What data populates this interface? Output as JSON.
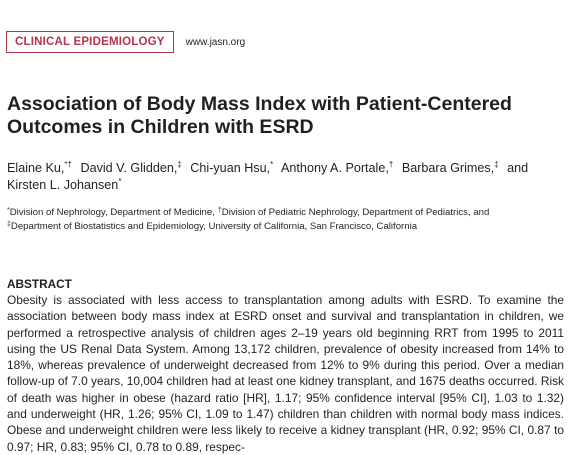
{
  "header": {
    "section": "CLINICAL EPIDEMIOLOGY",
    "url": "www.jasn.org"
  },
  "title_lines": [
    "Association of Body Mass Index with Patient-Centered",
    "Outcomes in Children with ESRD"
  ],
  "authors": [
    {
      "name": "Elaine Ku,",
      "marks": "*†"
    },
    {
      "name": "David V. Glidden,",
      "marks": "‡"
    },
    {
      "name": "Chi-yuan Hsu,",
      "marks": "*"
    },
    {
      "name": "Anthony A. Portale,",
      "marks": "†"
    },
    {
      "name": "Barbara Grimes,",
      "marks": "‡"
    },
    {
      "name": "and",
      "marks": null
    },
    {
      "name": "Kirsten L. Johansen",
      "marks": "*"
    }
  ],
  "affiliations": [
    {
      "mark": "*",
      "text": "Division of Nephrology, Department of Medicine,"
    },
    {
      "mark": "†",
      "text": "Division of Pediatric Nephrology, Department of Pediatrics, and"
    },
    {
      "mark": "‡",
      "text": "Department of Biostatistics and Epidemiology, University of California, San Francisco, California"
    }
  ],
  "abstract": {
    "heading": "ABSTRACT",
    "text": "Obesity is associated with less access to transplantation among adults with ESRD. To examine the association between body mass index at ESRD onset and survival and transplantation in children, we performed a retrospective analysis of children ages 2–19 years old beginning RRT from 1995 to 2011 using the US Renal Data System. Among 13,172 children, prevalence of obesity increased from 14% to 18%, whereas prevalence of underweight decreased from 12% to 9% during this period. Over a median follow-up of 7.0 years, 10,004 children had at least one kidney transplant, and 1675 deaths occurred. Risk of death was higher in obese (hazard ratio [HR], 1.17; 95% confidence interval [95% CI], 1.03 to 1.32) and underweight (HR, 1.26; 95% CI, 1.09 to 1.47) children than children with normal body mass indices. Obese and underweight children were less likely to receive a kidney transplant (HR, 0.92; 95% CI, 0.87 to 0.97; HR, 0.83; 95% CI, 0.78 to 0.89, respec-"
  }
}
